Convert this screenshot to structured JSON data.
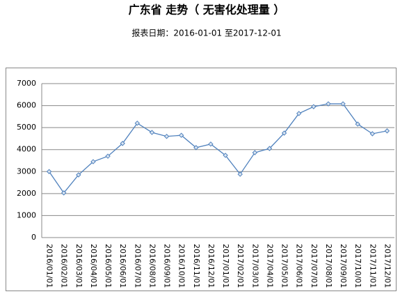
{
  "chart_data": {
    "type": "line",
    "title": "广东省 走势（ 无害化处理量 ）",
    "subtitle": "报表日期：2016-01-01 至2017-12-01",
    "categories": [
      "2016/01/01",
      "2016/02/01",
      "2016/03/01",
      "2016/04/01",
      "2016/05/01",
      "2016/06/01",
      "2016/07/01",
      "2016/08/01",
      "2016/09/01",
      "2016/10/01",
      "2016/11/01",
      "2016/12/01",
      "2017/01/01",
      "2017/02/01",
      "2017/03/01",
      "2017/04/01",
      "2017/05/01",
      "2017/06/01",
      "2017/07/01",
      "2017/08/01",
      "2017/09/01",
      "2017/10/01",
      "2017/11/01",
      "2017/12/01"
    ],
    "values": [
      3000,
      2030,
      2850,
      3450,
      3700,
      4280,
      5200,
      4780,
      4600,
      4650,
      4090,
      4250,
      3740,
      2880,
      3860,
      4050,
      4750,
      5640,
      5950,
      6080,
      6080,
      5160,
      4720,
      4850
    ],
    "color": "#4f81bd",
    "ylim": [
      0,
      7000
    ],
    "yticks": [
      0,
      1000,
      2000,
      3000,
      4000,
      5000,
      6000,
      7000
    ],
    "grid": true
  }
}
